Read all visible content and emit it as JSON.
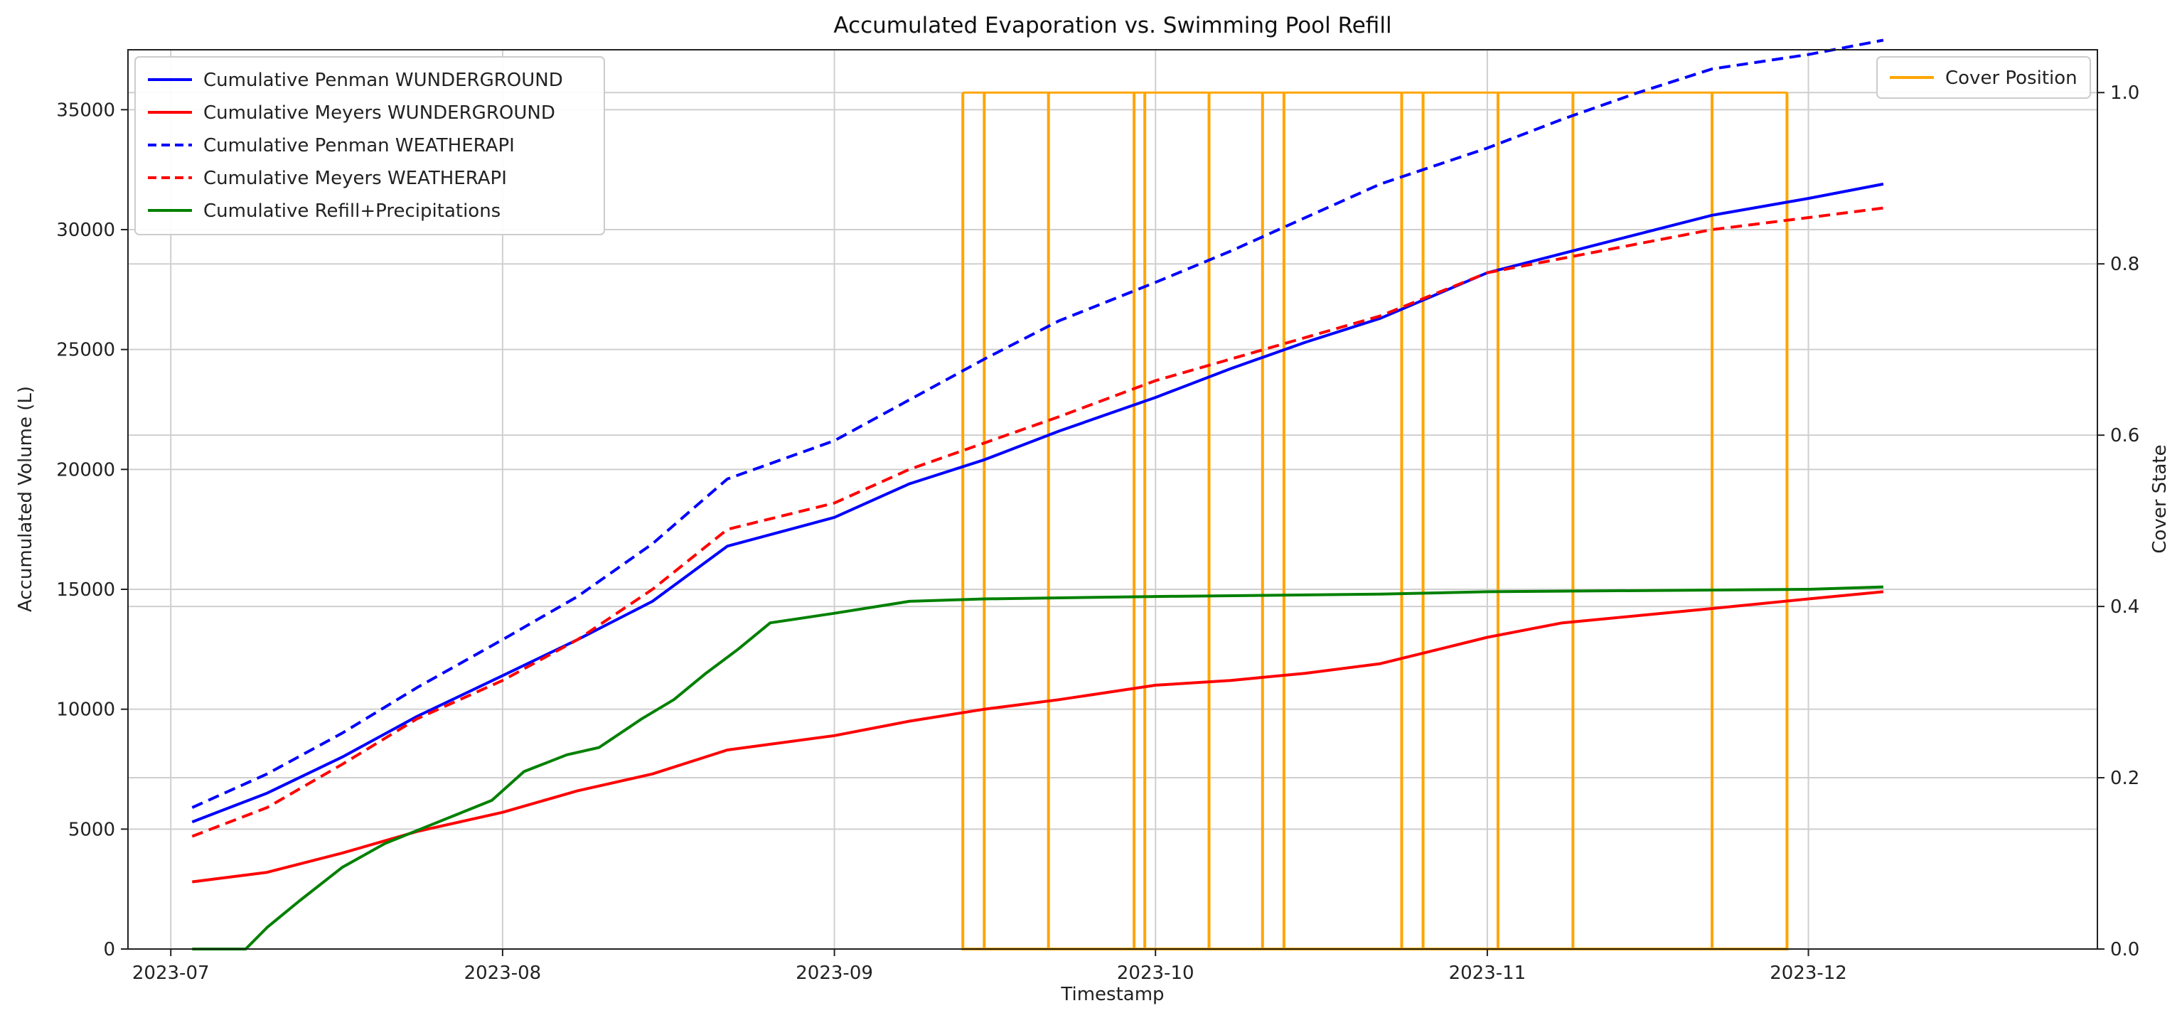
{
  "chart_data": {
    "type": "line",
    "title": "Accumulated Evaporation vs. Swimming Pool Refill",
    "xlabel": "Timestamp",
    "ylabel": "Accumulated Volume (L)",
    "y2label": "Cover State",
    "xlim": [
      "2023-06-27",
      "2023-12-28"
    ],
    "ylim": [
      0,
      37500
    ],
    "y2lim": [
      0,
      1.05
    ],
    "grid": true,
    "x_ticks": [
      "2023-07",
      "2023-08",
      "2023-09",
      "2023-10",
      "2023-11",
      "2023-12"
    ],
    "x_tick_dates": [
      "2023-07-01",
      "2023-08-01",
      "2023-09-01",
      "2023-10-01",
      "2023-11-01",
      "2023-12-01"
    ],
    "y_ticks": [
      "0",
      "5000",
      "10000",
      "15000",
      "20000",
      "25000",
      "30000",
      "35000"
    ],
    "y_tick_values": [
      0,
      5000,
      10000,
      15000,
      20000,
      25000,
      30000,
      35000
    ],
    "y2_ticks": [
      "0.0",
      "0.2",
      "0.4",
      "0.6",
      "0.8",
      "1.0"
    ],
    "y2_tick_values": [
      0,
      0.2,
      0.4,
      0.6,
      0.8,
      1.0
    ],
    "legend_left_position": "upper-left",
    "legend_right_position": "upper-right",
    "series": [
      {
        "name": "Cumulative Penman WUNDERGROUND",
        "color": "#0000ff",
        "style": "solid",
        "axis": "left",
        "x": [
          "2023-07-03",
          "2023-07-10",
          "2023-07-17",
          "2023-07-24",
          "2023-08-01",
          "2023-08-08",
          "2023-08-15",
          "2023-08-22",
          "2023-09-01",
          "2023-09-08",
          "2023-09-15",
          "2023-09-22",
          "2023-10-01",
          "2023-10-08",
          "2023-10-15",
          "2023-10-22",
          "2023-11-01",
          "2023-11-08",
          "2023-11-15",
          "2023-11-22",
          "2023-12-01",
          "2023-12-08"
        ],
        "y": [
          5300,
          6500,
          8000,
          9700,
          11400,
          12900,
          14500,
          16800,
          18000,
          19400,
          20400,
          21600,
          23000,
          24200,
          25300,
          26300,
          28200,
          29000,
          29800,
          30600,
          31300,
          31900
        ]
      },
      {
        "name": "Cumulative Meyers WUNDERGROUND",
        "color": "#ff0000",
        "style": "solid",
        "axis": "left",
        "x": [
          "2023-07-03",
          "2023-07-10",
          "2023-07-17",
          "2023-07-24",
          "2023-08-01",
          "2023-08-08",
          "2023-08-15",
          "2023-08-22",
          "2023-09-01",
          "2023-09-08",
          "2023-09-15",
          "2023-09-22",
          "2023-10-01",
          "2023-10-08",
          "2023-10-15",
          "2023-10-22",
          "2023-11-01",
          "2023-11-08",
          "2023-11-15",
          "2023-11-22",
          "2023-12-01",
          "2023-12-08"
        ],
        "y": [
          2800,
          3200,
          4000,
          4900,
          5700,
          6600,
          7300,
          8300,
          8900,
          9500,
          10000,
          10400,
          11000,
          11200,
          11500,
          11900,
          13000,
          13600,
          13900,
          14200,
          14600,
          14900
        ]
      },
      {
        "name": "Cumulative Penman WEATHERAPI",
        "color": "#0000ff",
        "style": "dashed",
        "axis": "left",
        "x": [
          "2023-07-03",
          "2023-07-10",
          "2023-07-17",
          "2023-07-24",
          "2023-08-01",
          "2023-08-08",
          "2023-08-15",
          "2023-08-22",
          "2023-09-01",
          "2023-09-08",
          "2023-09-15",
          "2023-09-22",
          "2023-10-01",
          "2023-10-08",
          "2023-10-15",
          "2023-10-22",
          "2023-11-01",
          "2023-11-08",
          "2023-11-15",
          "2023-11-22",
          "2023-12-01",
          "2023-12-08"
        ],
        "y": [
          5900,
          7300,
          9000,
          10900,
          12900,
          14700,
          16900,
          19600,
          21200,
          22900,
          24600,
          26200,
          27800,
          29100,
          30500,
          31900,
          33400,
          34600,
          35700,
          36700,
          37300,
          37900
        ]
      },
      {
        "name": "Cumulative Meyers WEATHERAPI",
        "color": "#ff0000",
        "style": "dashed",
        "axis": "left",
        "x": [
          "2023-07-03",
          "2023-07-10",
          "2023-07-17",
          "2023-07-24",
          "2023-08-01",
          "2023-08-08",
          "2023-08-15",
          "2023-08-22",
          "2023-09-01",
          "2023-09-08",
          "2023-09-15",
          "2023-09-22",
          "2023-10-01",
          "2023-10-08",
          "2023-10-15",
          "2023-10-22",
          "2023-11-01",
          "2023-11-08",
          "2023-11-15",
          "2023-11-22",
          "2023-12-01",
          "2023-12-08"
        ],
        "y": [
          4700,
          5900,
          7700,
          9600,
          11200,
          12900,
          15000,
          17500,
          18600,
          20000,
          21100,
          22200,
          23700,
          24600,
          25500,
          26400,
          28200,
          28800,
          29400,
          30000,
          30500,
          30900
        ]
      },
      {
        "name": "Cumulative Refill+Precipitations",
        "color": "#008000",
        "style": "solid",
        "axis": "left",
        "x": [
          "2023-07-03",
          "2023-07-08",
          "2023-07-10",
          "2023-07-13",
          "2023-07-17",
          "2023-07-21",
          "2023-07-26",
          "2023-07-31",
          "2023-08-03",
          "2023-08-07",
          "2023-08-10",
          "2023-08-14",
          "2023-08-17",
          "2023-08-20",
          "2023-08-23",
          "2023-08-26",
          "2023-09-01",
          "2023-09-08",
          "2023-09-15",
          "2023-10-01",
          "2023-10-22",
          "2023-11-01",
          "2023-12-01",
          "2023-12-08"
        ],
        "y": [
          0,
          0,
          900,
          2000,
          3400,
          4400,
          5300,
          6200,
          7400,
          8100,
          8400,
          9600,
          10400,
          11500,
          12500,
          13600,
          14000,
          14500,
          14600,
          14700,
          14800,
          14900,
          15000,
          15100
        ]
      }
    ],
    "cover_position": {
      "name": "Cover Position",
      "color": "#ffa500",
      "axis": "right",
      "value_when_covered": 1.0,
      "transition_dates": [
        "2023-09-13",
        "2023-09-15",
        "2023-09-21",
        "2023-09-29",
        "2023-09-30",
        "2023-10-06",
        "2023-10-11",
        "2023-10-13",
        "2023-10-24",
        "2023-10-26",
        "2023-11-02",
        "2023-11-09",
        "2023-11-22",
        "2023-11-29"
      ]
    }
  }
}
